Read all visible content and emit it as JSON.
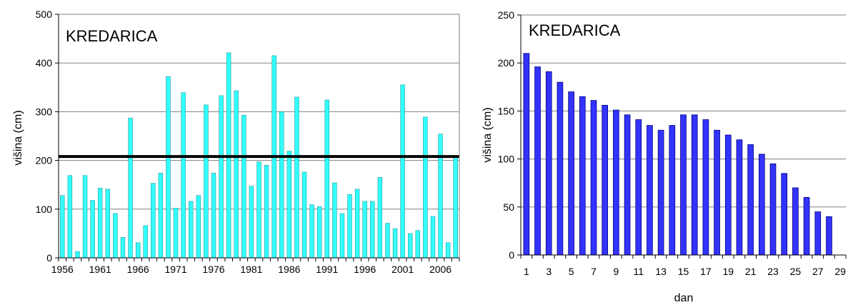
{
  "chart_data": [
    {
      "type": "bar",
      "title": "KREDARICA",
      "xlabel": "",
      "ylabel": "višina (cm)",
      "ylim": [
        0,
        500
      ],
      "yticks": [
        0,
        100,
        200,
        300,
        400,
        500
      ],
      "xtick_labels": [
        "1956",
        "1961",
        "1966",
        "1971",
        "1976",
        "1981",
        "1986",
        "1991",
        "1996",
        "2001",
        "2006"
      ],
      "grid": true,
      "bar_color": "#33ffff",
      "reference_line": {
        "value": 208,
        "color": "#000000"
      },
      "x": [
        1956,
        1957,
        1958,
        1959,
        1960,
        1961,
        1962,
        1963,
        1964,
        1965,
        1966,
        1967,
        1968,
        1969,
        1970,
        1971,
        1972,
        1973,
        1974,
        1975,
        1976,
        1977,
        1978,
        1979,
        1980,
        1981,
        1982,
        1983,
        1984,
        1985,
        1986,
        1987,
        1988,
        1989,
        1990,
        1991,
        1992,
        1993,
        1994,
        1995,
        1996,
        1997,
        1998,
        1999,
        2000,
        2001,
        2002,
        2003,
        2004,
        2005,
        2006,
        2007,
        2008
      ],
      "values": [
        128,
        169,
        13,
        169,
        118,
        143,
        141,
        91,
        42,
        287,
        31,
        66,
        153,
        174,
        372,
        102,
        339,
        116,
        128,
        314,
        174,
        333,
        421,
        343,
        293,
        147,
        197,
        190,
        415,
        300,
        219,
        330,
        176,
        109,
        105,
        324,
        154,
        91,
        130,
        141,
        116,
        116,
        165,
        71,
        60,
        355,
        50,
        56,
        289,
        85,
        254,
        31,
        210
      ]
    },
    {
      "type": "bar",
      "title": "KREDARICA",
      "xlabel": "dan",
      "ylabel": "višina (cm)",
      "ylim": [
        0,
        250
      ],
      "yticks": [
        0,
        50,
        100,
        150,
        200,
        250
      ],
      "xtick_labels": [
        "1",
        "3",
        "5",
        "7",
        "9",
        "11",
        "13",
        "15",
        "17",
        "19",
        "21",
        "23",
        "25",
        "27",
        "29"
      ],
      "grid": true,
      "bar_color": "#3333ff",
      "x": [
        1,
        2,
        3,
        4,
        5,
        6,
        7,
        8,
        9,
        10,
        11,
        12,
        13,
        14,
        15,
        16,
        17,
        18,
        19,
        20,
        21,
        22,
        23,
        24,
        25,
        26,
        27,
        28
      ],
      "values": [
        210,
        196,
        191,
        180,
        170,
        165,
        161,
        156,
        151,
        146,
        141,
        135,
        130,
        135,
        146,
        146,
        141,
        130,
        125,
        120,
        115,
        105,
        95,
        85,
        70,
        60,
        45,
        40
      ]
    }
  ]
}
